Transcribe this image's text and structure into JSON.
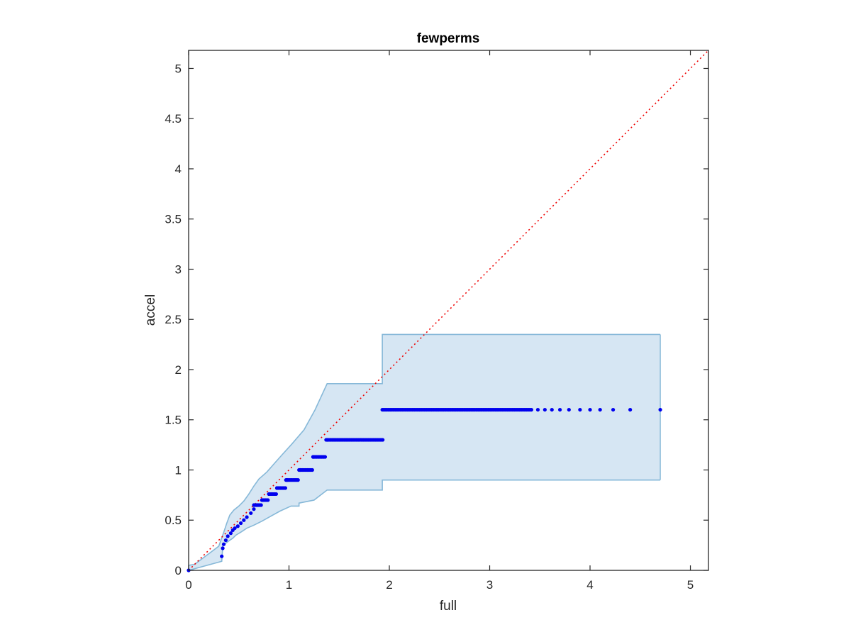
{
  "chart_data": {
    "type": "scatter",
    "title": "fewperms",
    "xlabel": "full",
    "ylabel": "accel",
    "xlim": [
      0,
      5.18
    ],
    "ylim": [
      0,
      5.18
    ],
    "x_ticks": [
      0,
      1,
      2,
      3,
      4,
      5
    ],
    "y_ticks": [
      0,
      0.5,
      1,
      1.5,
      2,
      2.5,
      3,
      3.5,
      4,
      4.5,
      5
    ],
    "x_tick_labels": [
      "0",
      "1",
      "2",
      "3",
      "4",
      "5"
    ],
    "y_tick_labels": [
      "0",
      "0.5",
      "1",
      "1.5",
      "2",
      "2.5",
      "3",
      "3.5",
      "4",
      "4.5",
      "5"
    ],
    "grid": false,
    "box": true,
    "colors": {
      "points": "#0000ee",
      "band_fill": "#d6e6f3",
      "band_edge": "#86b8d8",
      "diagonal": "#ee0000",
      "axes": "#262626"
    },
    "series": [
      {
        "type": "scatter",
        "points": [
          [
            0,
            0
          ],
          [
            0.33,
            0.14
          ],
          [
            0.34,
            0.22
          ],
          [
            0.35,
            0.26
          ],
          [
            0.37,
            0.3
          ],
          [
            0.39,
            0.34
          ],
          [
            0.42,
            0.37
          ],
          [
            0.44,
            0.4
          ],
          [
            0.46,
            0.42
          ],
          [
            0.49,
            0.44
          ],
          [
            0.52,
            0.47
          ],
          [
            0.55,
            0.5
          ],
          [
            0.58,
            0.53
          ],
          [
            0.62,
            0.57
          ],
          [
            0.65,
            0.61
          ],
          [
            0.68,
            0.65
          ],
          [
            0.74,
            0.7
          ],
          [
            0.8,
            0.76
          ],
          [
            0.88,
            0.82
          ],
          [
            0.98,
            0.9
          ],
          [
            1.11,
            1.0
          ],
          [
            1.24,
            1.13
          ],
          [
            1.38,
            1.3
          ],
          [
            1.93,
            1.6
          ]
        ],
        "flat_runs": [
          {
            "y": 0.65,
            "x_from": 0.65,
            "x_to": 0.73
          },
          {
            "y": 0.7,
            "x_from": 0.73,
            "x_to": 0.8
          },
          {
            "y": 0.76,
            "x_from": 0.8,
            "x_to": 0.88
          },
          {
            "y": 0.82,
            "x_from": 0.88,
            "x_to": 0.97
          },
          {
            "y": 0.9,
            "x_from": 0.97,
            "x_to": 1.1
          },
          {
            "y": 1.0,
            "x_from": 1.1,
            "x_to": 1.24
          },
          {
            "y": 1.13,
            "x_from": 1.24,
            "x_to": 1.37
          },
          {
            "y": 1.3,
            "x_from": 1.37,
            "x_to": 1.94
          },
          {
            "y": 1.6,
            "x_from": 1.94,
            "x_to": 3.42
          }
        ],
        "sparse_tail": [
          [
            3.48,
            1.6
          ],
          [
            3.55,
            1.6
          ],
          [
            3.62,
            1.6
          ],
          [
            3.7,
            1.6
          ],
          [
            3.79,
            1.6
          ],
          [
            3.9,
            1.6
          ],
          [
            4.0,
            1.6
          ],
          [
            4.1,
            1.6
          ],
          [
            4.23,
            1.6
          ],
          [
            4.4,
            1.6
          ],
          [
            4.7,
            1.6
          ]
        ]
      },
      {
        "type": "area",
        "upper": [
          [
            0,
            0.05
          ],
          [
            0.06,
            0.06
          ],
          [
            0.3,
            0.24
          ],
          [
            0.35,
            0.38
          ],
          [
            0.38,
            0.47
          ],
          [
            0.41,
            0.55
          ],
          [
            0.45,
            0.6
          ],
          [
            0.5,
            0.64
          ],
          [
            0.55,
            0.69
          ],
          [
            0.6,
            0.76
          ],
          [
            0.65,
            0.84
          ],
          [
            0.7,
            0.91
          ],
          [
            0.78,
            0.98
          ],
          [
            0.85,
            1.06
          ],
          [
            0.93,
            1.15
          ],
          [
            1.03,
            1.26
          ],
          [
            1.15,
            1.4
          ],
          [
            1.26,
            1.6
          ],
          [
            1.38,
            1.86
          ],
          [
            1.93,
            1.86
          ],
          [
            1.93,
            2.35
          ],
          [
            4.7,
            2.35
          ]
        ],
        "lower": [
          [
            0,
            0
          ],
          [
            0.33,
            0.09
          ],
          [
            0.34,
            0.24
          ],
          [
            0.37,
            0.27
          ],
          [
            0.41,
            0.3
          ],
          [
            0.44,
            0.32
          ],
          [
            0.47,
            0.35
          ],
          [
            0.52,
            0.38
          ],
          [
            0.58,
            0.42
          ],
          [
            0.65,
            0.45
          ],
          [
            0.73,
            0.49
          ],
          [
            0.82,
            0.54
          ],
          [
            0.91,
            0.59
          ],
          [
            1.02,
            0.64
          ],
          [
            1.1,
            0.64
          ],
          [
            1.1,
            0.67
          ],
          [
            1.25,
            0.7
          ],
          [
            1.38,
            0.8
          ],
          [
            1.38,
            0.8
          ],
          [
            1.93,
            0.8
          ],
          [
            1.93,
            0.9
          ],
          [
            4.7,
            0.9
          ]
        ]
      },
      {
        "type": "line",
        "style": "dotted",
        "points": [
          [
            0,
            0
          ],
          [
            5.18,
            5.18
          ]
        ]
      }
    ]
  }
}
